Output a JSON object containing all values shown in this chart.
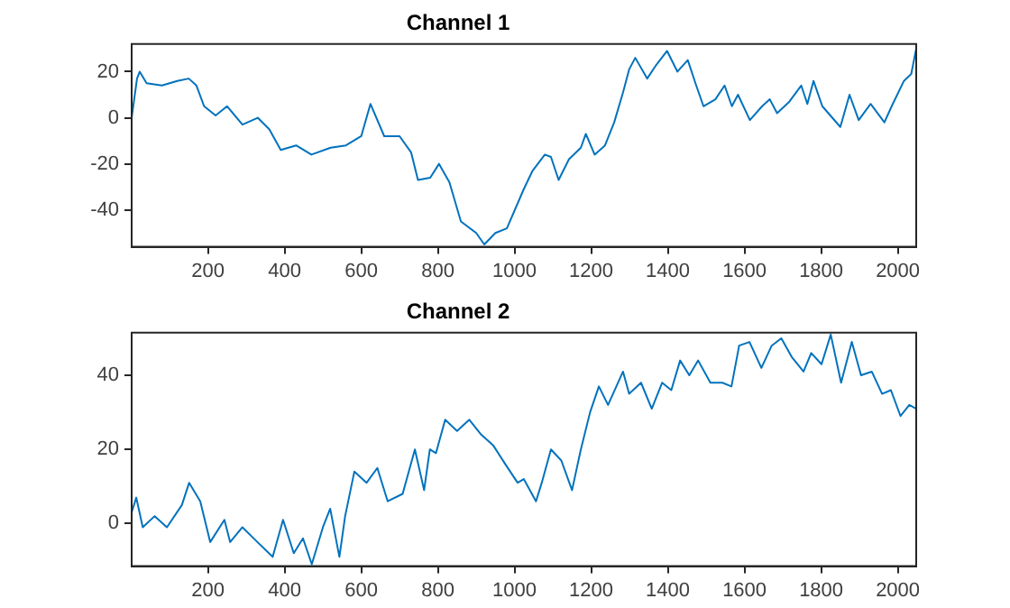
{
  "chart_data": [
    {
      "type": "line",
      "title": "Channel 1",
      "xlim": [
        1,
        2048
      ],
      "xticks": [
        200,
        400,
        600,
        800,
        1000,
        1200,
        1400,
        1600,
        1800,
        2000
      ],
      "ylim": [
        -56,
        32
      ],
      "yticks": [
        -40,
        -20,
        0,
        20
      ],
      "grid": false,
      "legend": false,
      "x": [
        1,
        15,
        22,
        40,
        80,
        120,
        150,
        170,
        190,
        220,
        250,
        290,
        330,
        360,
        390,
        430,
        470,
        520,
        560,
        600,
        624,
        660,
        700,
        730,
        748,
        780,
        803,
        830,
        860,
        900,
        921,
        950,
        980,
        1024,
        1047,
        1079,
        1095,
        1115,
        1142,
        1173,
        1186,
        1209,
        1236,
        1260,
        1283,
        1299,
        1315,
        1346,
        1370,
        1398,
        1425,
        1452,
        1472,
        1493,
        1524,
        1548,
        1567,
        1583,
        1614,
        1646,
        1666,
        1685,
        1717,
        1748,
        1764,
        1780,
        1803,
        1850,
        1874,
        1898,
        1929,
        1965,
        1984,
        2016,
        2035,
        2048
      ],
      "series": [
        {
          "color": "#0072bd",
          "values": [
            0,
            17,
            20,
            15,
            14,
            16,
            17,
            14,
            5,
            1,
            5,
            -3,
            0,
            -5,
            -14,
            -12,
            -16,
            -13,
            -12,
            -8,
            6,
            -8,
            -8,
            -15,
            -27,
            -26,
            -20,
            -28,
            -45,
            -50,
            -55,
            -50,
            -48,
            -31,
            -23,
            -16,
            -17,
            -27,
            -18,
            -13,
            -7,
            -16,
            -12,
            -2,
            11,
            21,
            26,
            17,
            23,
            29,
            20,
            25,
            15,
            5,
            8,
            14,
            5,
            10,
            -1,
            5,
            8,
            2,
            7,
            14,
            6,
            16,
            5,
            -4,
            10,
            -1,
            6,
            -2,
            5,
            16,
            19,
            30
          ]
        }
      ]
    },
    {
      "type": "line",
      "title": "Channel 2",
      "xlim": [
        1,
        2048
      ],
      "xticks": [
        200,
        400,
        600,
        800,
        1000,
        1200,
        1400,
        1600,
        1800,
        2000
      ],
      "ylim": [
        -11.5,
        51.5
      ],
      "yticks": [
        0,
        20,
        40
      ],
      "grid": false,
      "legend": false,
      "x": [
        1,
        13,
        30,
        61,
        93,
        132,
        151,
        180,
        206,
        243,
        258,
        290,
        329,
        369,
        396,
        424,
        448,
        471,
        500,
        519,
        543,
        558,
        582,
        614,
        642,
        669,
        708,
        740,
        764,
        779,
        795,
        819,
        850,
        882,
        913,
        945,
        976,
        1008,
        1024,
        1056,
        1071,
        1095,
        1122,
        1150,
        1173,
        1197,
        1220,
        1244,
        1283,
        1299,
        1330,
        1358,
        1385,
        1409,
        1432,
        1456,
        1479,
        1511,
        1542,
        1566,
        1586,
        1613,
        1644,
        1671,
        1696,
        1723,
        1754,
        1774,
        1801,
        1825,
        1852,
        1880,
        1904,
        1932,
        1959,
        1982,
        2007,
        2030,
        2048
      ],
      "series": [
        {
          "color": "#0072bd",
          "values": [
            3,
            7,
            -1,
            2,
            -1,
            5,
            11,
            6,
            -5,
            1,
            -5,
            -1,
            -5,
            -9,
            1,
            -8,
            -4,
            -11,
            -1,
            4,
            -9,
            2,
            14,
            11,
            15,
            6,
            8,
            20,
            9,
            20,
            19,
            28,
            25,
            28,
            24,
            21,
            16,
            11,
            12,
            6,
            11,
            20,
            17,
            9,
            20,
            30,
            37,
            32,
            41,
            35,
            38,
            31,
            38,
            36,
            44,
            40,
            44,
            38,
            38,
            37,
            48,
            49,
            42,
            48,
            50,
            45,
            41,
            46,
            43,
            51,
            38,
            49,
            40,
            41,
            35,
            36,
            29,
            32,
            31
          ]
        }
      ]
    }
  ]
}
